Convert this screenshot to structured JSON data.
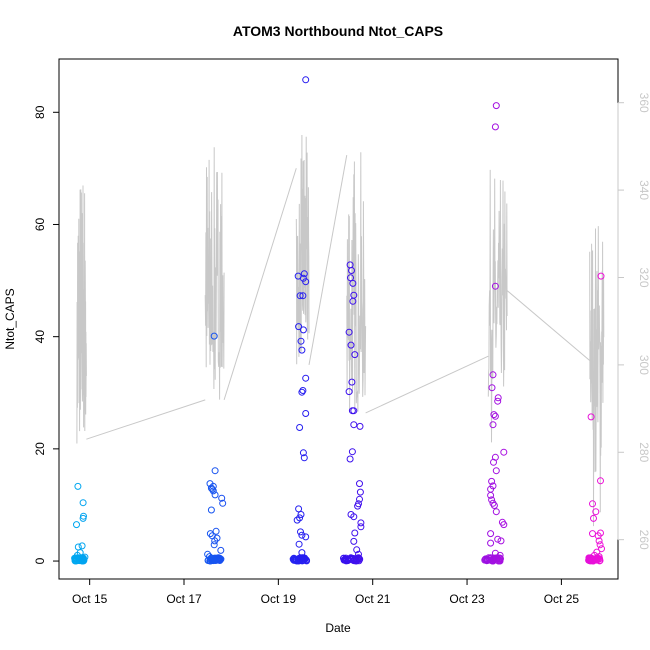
{
  "chart_data": {
    "type": "scatter",
    "title": "ATOM3 Northbound Ntot_CAPS",
    "xlabel": "Date",
    "ylabel": "Ntot_CAPS",
    "x_ticks": [
      {
        "day": 15,
        "label": "Oct 15"
      },
      {
        "day": 17,
        "label": "Oct 17"
      },
      {
        "day": 19,
        "label": "Oct 19"
      },
      {
        "day": 21,
        "label": "Oct 21"
      },
      {
        "day": 23,
        "label": "Oct 23"
      },
      {
        "day": 25,
        "label": "Oct 25"
      }
    ],
    "xlim": [
      14.35,
      26.2
    ],
    "ylim": [
      -3.2,
      89.5
    ],
    "y_ticks": [
      0,
      20,
      40,
      60,
      80
    ],
    "y2lim": [
      251,
      370
    ],
    "y2_ticks": [
      260,
      280,
      300,
      320,
      340,
      360
    ],
    "grid": false,
    "legend": "none",
    "colors": {
      "line": "#c8c8c8",
      "right_axis": "#c8c8c8",
      "points_start": "#00a8f0",
      "points_mid": "#2a10f0",
      "points_end": "#f010d8"
    },
    "clusters": [
      {
        "center": 14.78,
        "width": 0.2,
        "points": [
          [
            14.75,
            13.3
          ],
          [
            14.72,
            6.5
          ],
          [
            14.76,
            2.5
          ],
          [
            14.84,
            2.7
          ],
          [
            14.86,
            7.6
          ],
          [
            14.87,
            8.0
          ],
          [
            14.86,
            10.4
          ],
          [
            14.74,
            1.0
          ],
          [
            14.8,
            1.5
          ],
          [
            14.9,
            0.7
          ]
        ]
      },
      {
        "center": 17.65,
        "width": 0.3,
        "points": [
          [
            17.55,
            13.8
          ],
          [
            17.58,
            13.0
          ],
          [
            17.6,
            12.8
          ],
          [
            17.62,
            13.3
          ],
          [
            17.58,
            9.1
          ],
          [
            17.66,
            16.1
          ],
          [
            17.62,
            12.5
          ],
          [
            17.66,
            11.8
          ],
          [
            17.68,
            5.3
          ],
          [
            17.56,
            4.9
          ],
          [
            17.6,
            4.5
          ],
          [
            17.65,
            3.6
          ],
          [
            17.7,
            4.1
          ],
          [
            17.64,
            2.9
          ],
          [
            17.8,
            11.2
          ],
          [
            17.82,
            10.3
          ],
          [
            17.64,
            40.1
          ],
          [
            17.78,
            1.9
          ],
          [
            17.5,
            1.2
          ],
          [
            17.54,
            0.8
          ]
        ]
      },
      {
        "center": 19.45,
        "width": 0.3,
        "points": [
          [
            19.58,
            85.8
          ],
          [
            19.42,
            50.8
          ],
          [
            19.55,
            51.2
          ],
          [
            19.53,
            50.4
          ],
          [
            19.58,
            49.8
          ],
          [
            19.46,
            47.3
          ],
          [
            19.52,
            47.3
          ],
          [
            19.43,
            41.8
          ],
          [
            19.53,
            41.2
          ],
          [
            19.48,
            39.2
          ],
          [
            19.5,
            37.6
          ],
          [
            19.58,
            32.6
          ],
          [
            19.52,
            30.4
          ],
          [
            19.5,
            30.1
          ],
          [
            19.58,
            26.3
          ],
          [
            19.45,
            23.8
          ],
          [
            19.53,
            19.3
          ],
          [
            19.55,
            18.4
          ],
          [
            19.43,
            9.3
          ],
          [
            19.48,
            8.3
          ],
          [
            19.45,
            7.7
          ],
          [
            19.4,
            7.3
          ],
          [
            19.47,
            5.2
          ],
          [
            19.5,
            4.6
          ],
          [
            19.58,
            4.3
          ],
          [
            19.44,
            3.0
          ],
          [
            19.5,
            1.5
          ]
        ]
      },
      {
        "center": 20.55,
        "width": 0.35,
        "points": [
          [
            20.52,
            52.8
          ],
          [
            20.55,
            51.8
          ],
          [
            20.53,
            50.5
          ],
          [
            20.58,
            49.5
          ],
          [
            20.6,
            47.4
          ],
          [
            20.58,
            46.3
          ],
          [
            20.5,
            40.8
          ],
          [
            20.54,
            38.5
          ],
          [
            20.62,
            36.8
          ],
          [
            20.56,
            31.9
          ],
          [
            20.5,
            30.2
          ],
          [
            20.6,
            26.8
          ],
          [
            20.57,
            26.8
          ],
          [
            20.6,
            24.3
          ],
          [
            20.73,
            24.0
          ],
          [
            20.57,
            19.5
          ],
          [
            20.52,
            18.2
          ],
          [
            20.72,
            13.8
          ],
          [
            20.74,
            12.3
          ],
          [
            20.72,
            11.0
          ],
          [
            20.68,
            9.8
          ],
          [
            20.7,
            10.2
          ],
          [
            20.6,
            7.9
          ],
          [
            20.75,
            6.8
          ],
          [
            20.75,
            6.1
          ],
          [
            20.62,
            5.0
          ],
          [
            20.54,
            8.3
          ],
          [
            20.6,
            3.5
          ],
          [
            20.66,
            2.0
          ],
          [
            20.7,
            1.2
          ]
        ]
      },
      {
        "center": 23.55,
        "width": 0.35,
        "points": [
          [
            23.62,
            81.2
          ],
          [
            23.6,
            77.4
          ],
          [
            23.6,
            49.0
          ],
          [
            23.55,
            33.2
          ],
          [
            23.53,
            30.9
          ],
          [
            23.66,
            29.1
          ],
          [
            23.65,
            28.5
          ],
          [
            23.57,
            26.1
          ],
          [
            23.6,
            25.8
          ],
          [
            23.55,
            24.3
          ],
          [
            23.78,
            19.4
          ],
          [
            23.6,
            18.5
          ],
          [
            23.56,
            17.6
          ],
          [
            23.62,
            16.1
          ],
          [
            23.52,
            14.2
          ],
          [
            23.55,
            13.4
          ],
          [
            23.5,
            12.8
          ],
          [
            23.5,
            11.7
          ],
          [
            23.52,
            10.9
          ],
          [
            23.55,
            10.3
          ],
          [
            23.58,
            9.9
          ],
          [
            23.62,
            8.8
          ],
          [
            23.75,
            6.9
          ],
          [
            23.78,
            6.5
          ],
          [
            23.5,
            4.9
          ],
          [
            23.65,
            3.9
          ],
          [
            23.72,
            3.6
          ],
          [
            23.5,
            3.2
          ],
          [
            23.6,
            1.4
          ],
          [
            23.7,
            1.0
          ]
        ]
      },
      {
        "center": 25.7,
        "width": 0.25,
        "points": [
          [
            25.84,
            50.8
          ],
          [
            25.63,
            25.7
          ],
          [
            25.83,
            14.3
          ],
          [
            25.66,
            10.2
          ],
          [
            25.73,
            8.8
          ],
          [
            25.68,
            7.6
          ],
          [
            25.83,
            5.0
          ],
          [
            25.66,
            4.9
          ],
          [
            25.78,
            4.5
          ],
          [
            25.8,
            3.6
          ],
          [
            25.82,
            2.9
          ],
          [
            25.85,
            2.2
          ],
          [
            25.75,
            1.6
          ],
          [
            25.7,
            1.0
          ],
          [
            25.8,
            0.8
          ]
        ]
      }
    ],
    "line_segments": [
      {
        "x0": 14.73,
        "x1": 14.93,
        "base": 283,
        "amp_lo": 282,
        "amp_hi": 345
      },
      {
        "x0": 17.45,
        "x1": 17.85,
        "base": 292,
        "amp_lo": 299,
        "amp_hi": 350
      },
      {
        "x0": 19.38,
        "x1": 19.65,
        "base": 302,
        "amp_lo": 299,
        "amp_hi": 353
      },
      {
        "x0": 20.45,
        "x1": 20.85,
        "base": 289,
        "amp_lo": 289,
        "amp_hi": 349
      },
      {
        "x0": 23.45,
        "x1": 23.85,
        "base": 296,
        "amp_lo": 282,
        "amp_hi": 345
      },
      {
        "x0": 25.6,
        "x1": 25.9,
        "base": 290,
        "amp_lo": 263,
        "amp_hi": 335
      }
    ],
    "line_connectors": [
      [
        [
          14.93,
          283
        ],
        [
          17.45,
          292
        ]
      ],
      [
        [
          17.85,
          292
        ],
        [
          19.38,
          345
        ]
      ],
      [
        [
          19.65,
          300
        ],
        [
          20.45,
          348
        ]
      ],
      [
        [
          20.85,
          289
        ],
        [
          23.45,
          302
        ]
      ],
      [
        [
          23.85,
          317
        ],
        [
          25.6,
          301
        ]
      ]
    ]
  }
}
